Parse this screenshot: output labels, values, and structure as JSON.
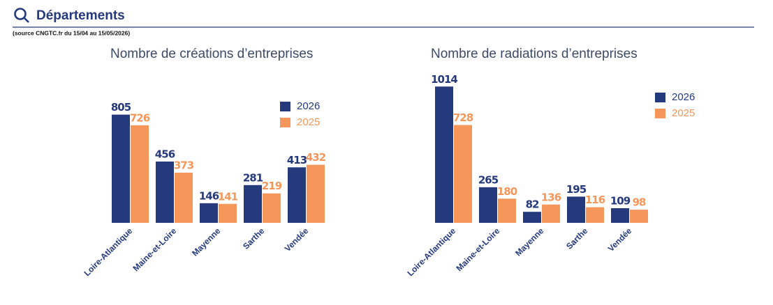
{
  "header": {
    "title": "Départements",
    "source": "(source CNGTC.fr du 15/04 au 15/05/2026)"
  },
  "chart_data": [
    {
      "type": "bar",
      "title": "Nombre de créations d’entreprises",
      "categories": [
        "Loire-Atlantique",
        "Maine-et-Loire",
        "Mayenne",
        "Sarthe",
        "Vendée"
      ],
      "series": [
        {
          "name": "2026",
          "color": "#243a7d",
          "values": [
            805,
            456,
            146,
            281,
            413
          ]
        },
        {
          "name": "2025",
          "color": "#f5975a",
          "values": [
            726,
            373,
            141,
            219,
            432
          ]
        }
      ]
    },
    {
      "type": "bar",
      "title": "Nombre de radiations d’entreprises",
      "categories": [
        "Loire-Atlantique",
        "Maine-et-Loire",
        "Mayenne",
        "Sarthe",
        "Vendée"
      ],
      "series": [
        {
          "name": "2026",
          "color": "#243a7d",
          "values": [
            1014,
            265,
            82,
            195,
            109
          ]
        },
        {
          "name": "2025",
          "color": "#f5975a",
          "values": [
            728,
            180,
            136,
            116,
            98
          ]
        }
      ]
    }
  ]
}
